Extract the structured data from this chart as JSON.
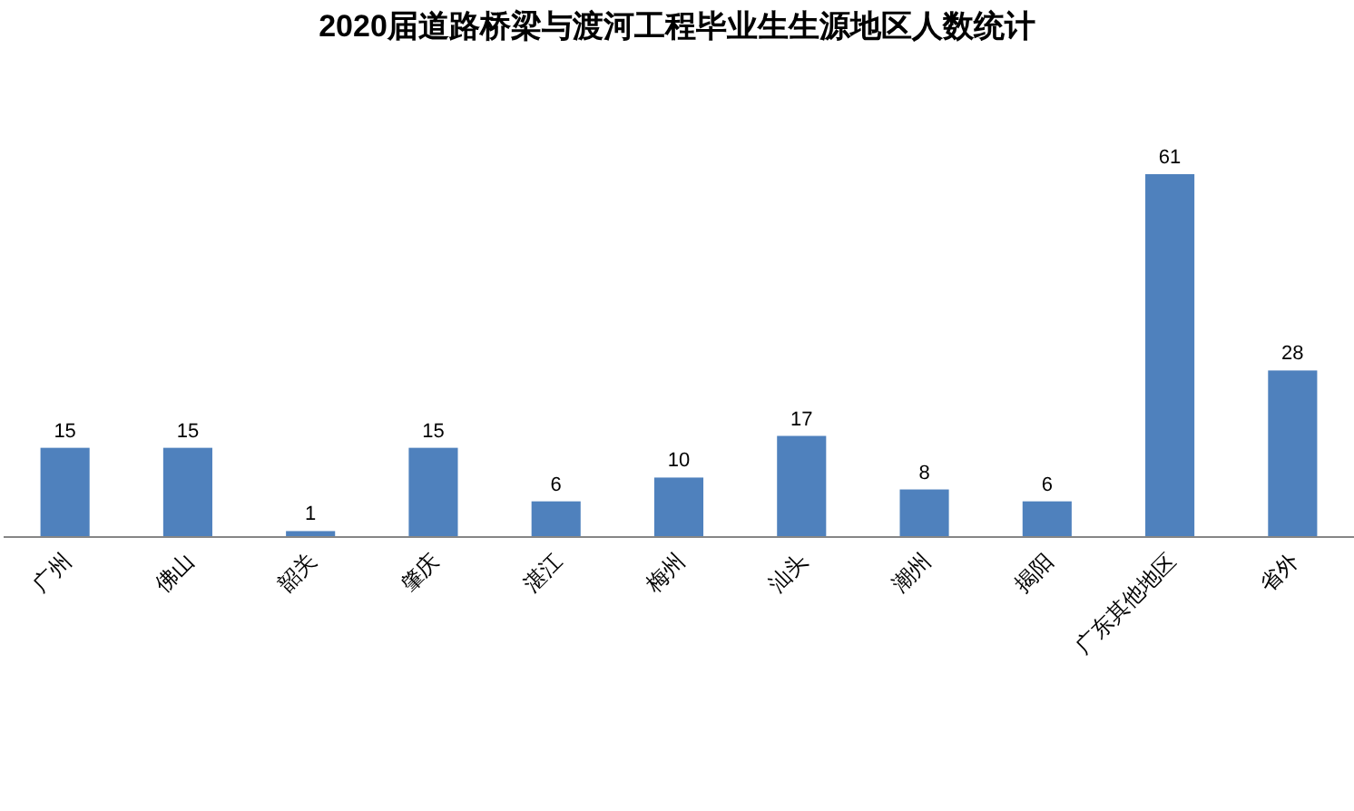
{
  "chart_data": {
    "type": "bar",
    "title": "2020届道路桥梁与渡河工程毕业生生源地区人数统计",
    "categories": [
      "广州",
      "佛山",
      "韶关",
      "肇庆",
      "湛江",
      "梅州",
      "汕头",
      "潮州",
      "揭阳",
      "广东其他地区",
      "省外"
    ],
    "values": [
      15,
      15,
      1,
      15,
      6,
      10,
      17,
      8,
      6,
      61,
      28
    ],
    "color": "#4f81bd",
    "data_labels": true
  }
}
